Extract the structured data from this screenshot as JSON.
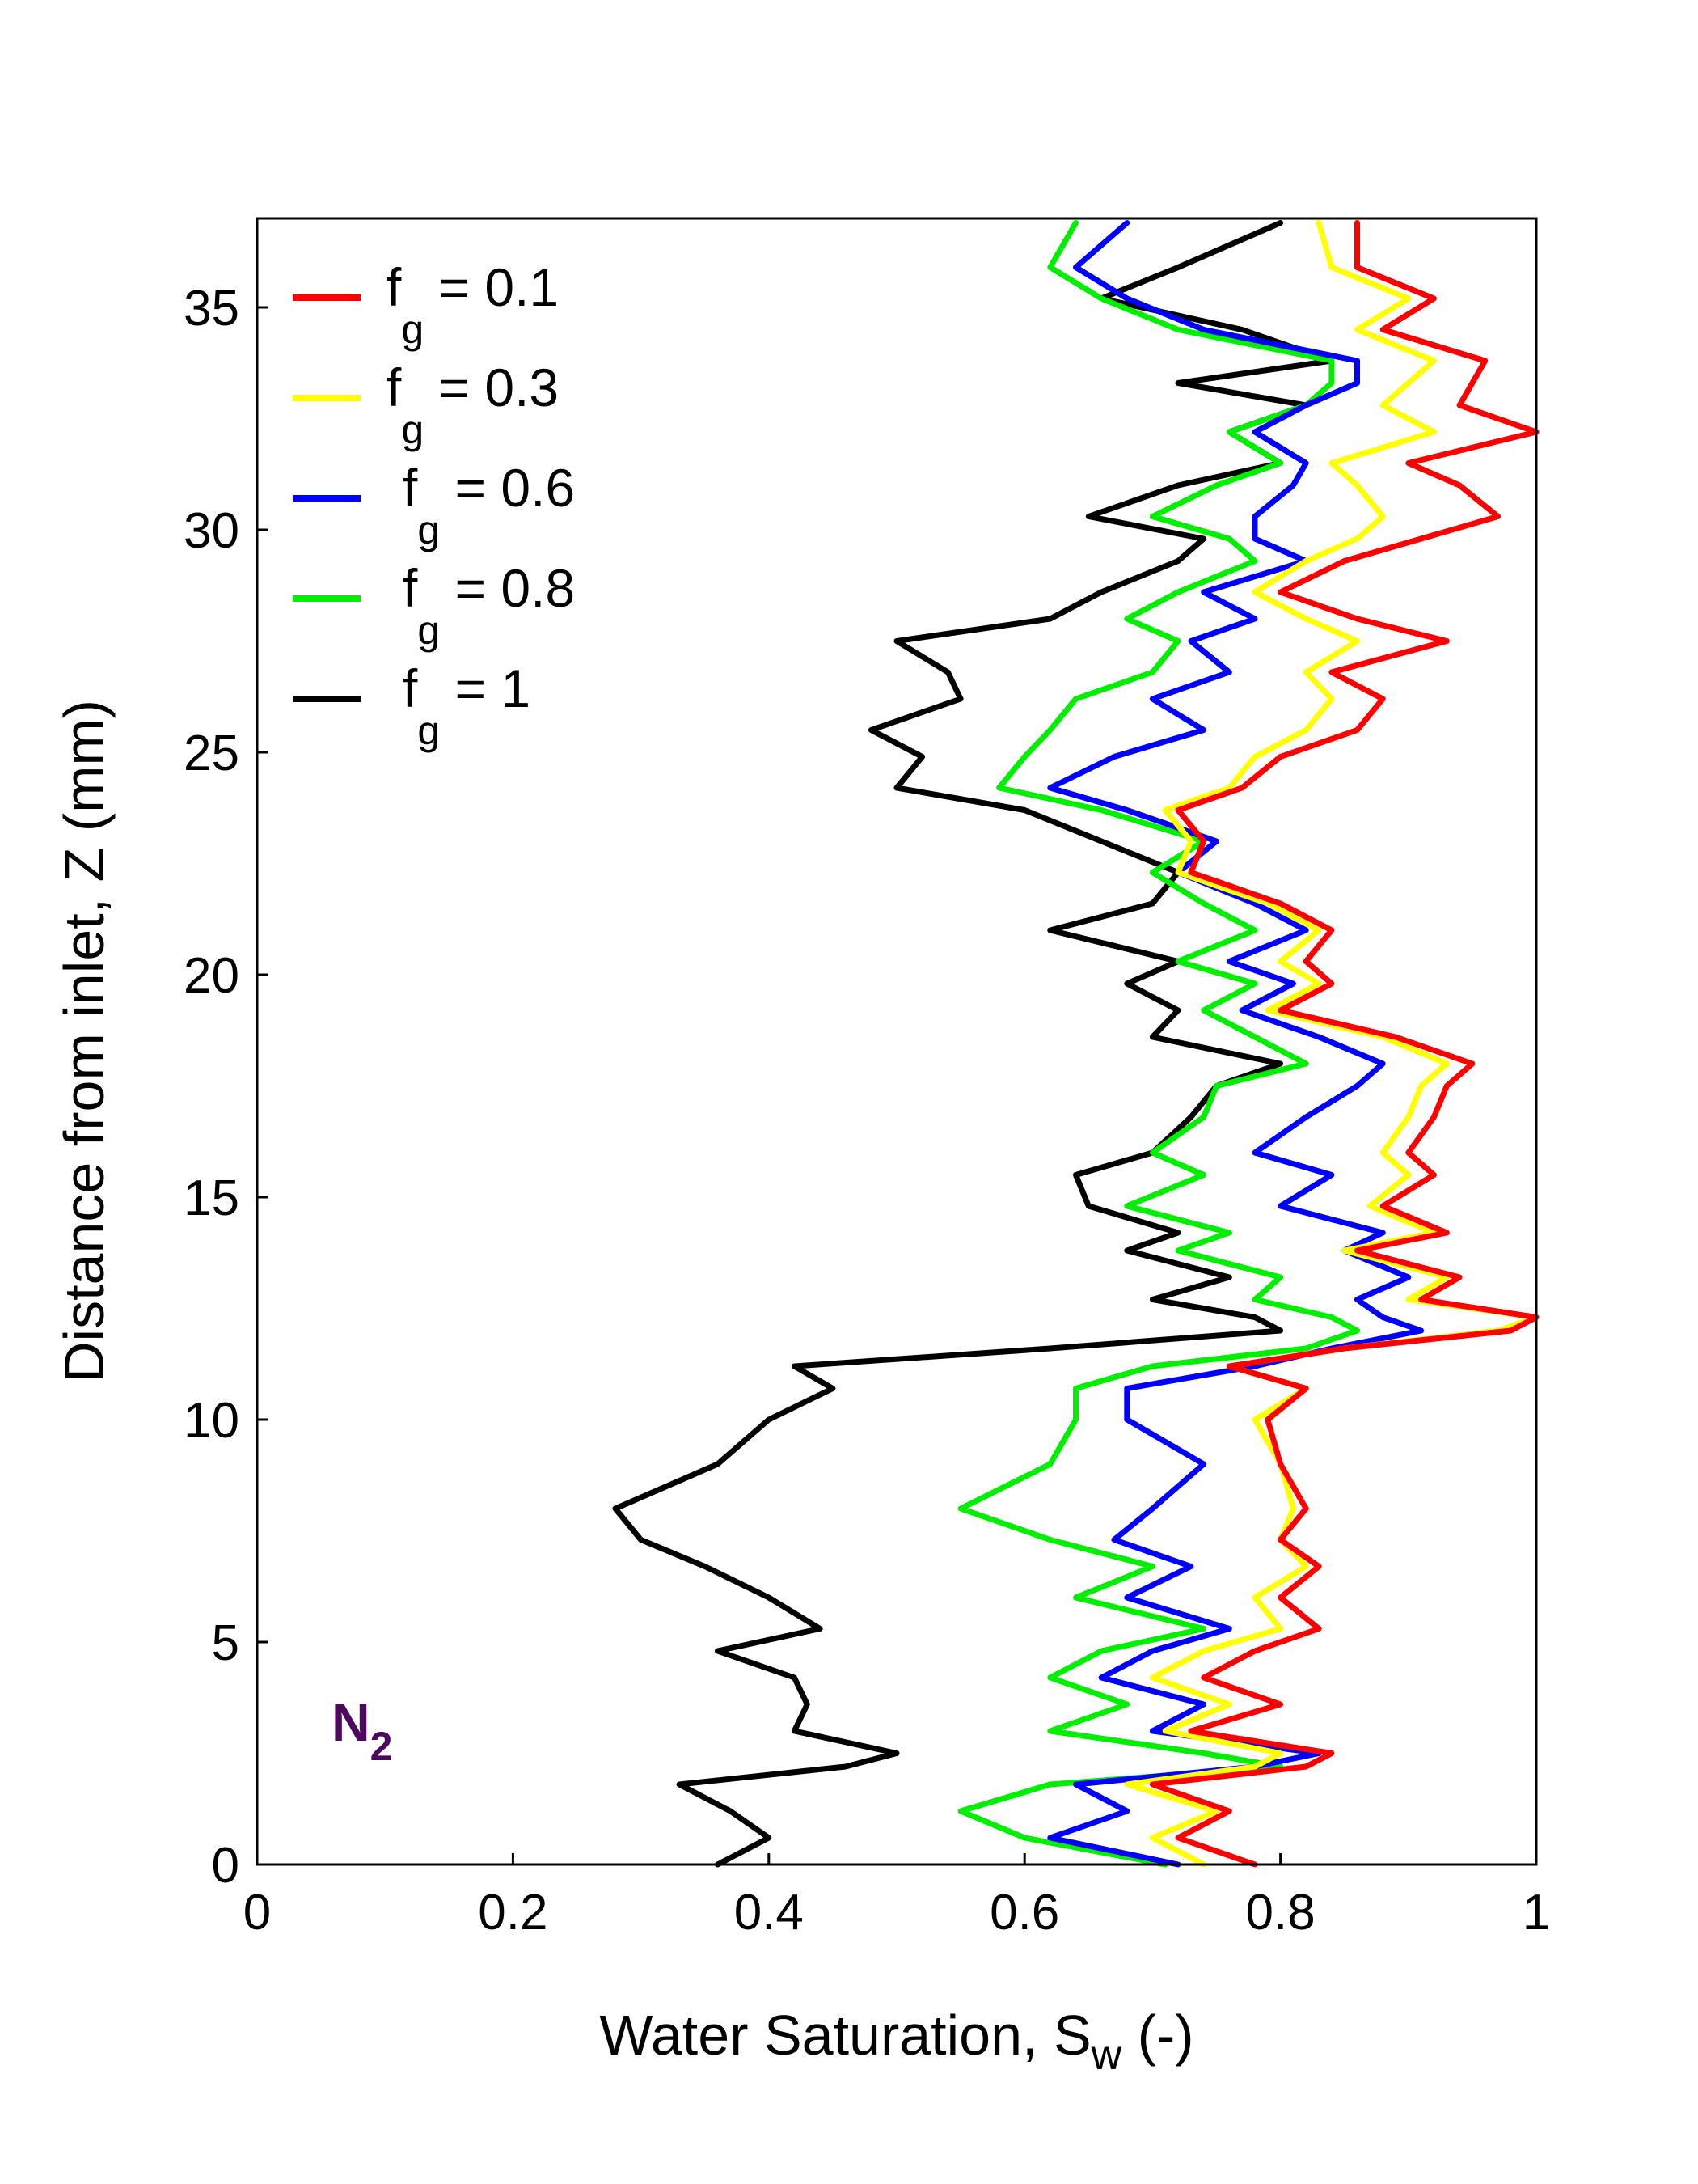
{
  "chart_data": {
    "type": "line",
    "xlabel_main": "Water Saturation, S",
    "xlabel_sub": "w",
    "xlabel_tail": " (-)",
    "ylabel": "Distance from inlet, Z (mm)",
    "xlim": [
      0,
      1
    ],
    "ylim": [
      0,
      37
    ],
    "x_ticks": [
      0,
      0.2,
      0.4,
      0.6,
      0.8,
      1
    ],
    "x_tick_labels": [
      "0",
      "0.2",
      "0.4",
      "0.6",
      "0.8",
      "1"
    ],
    "y_ticks": [
      0,
      5,
      10,
      15,
      20,
      25,
      30,
      35
    ],
    "y_tick_labels": [
      "0",
      "5",
      "10",
      "15",
      "20",
      "25",
      "30",
      "35"
    ],
    "annotation": {
      "main": "N",
      "sub": "2"
    },
    "legend_position": "top-left",
    "series": [
      {
        "name": "f_g = 0.1",
        "label_main": "f",
        "label_sub": "g",
        "label_tail": " = 0.1",
        "color": "#ff0000",
        "x": [
          0.78,
          0.72,
          0.76,
          0.7,
          0.82,
          0.84,
          0.73,
          0.8,
          0.74,
          0.78,
          0.83,
          0.8,
          0.83,
          0.8,
          0.82,
          0.8,
          0.79,
          0.82,
          0.76,
          0.85,
          0.98,
          1.0,
          0.91,
          0.94,
          0.86,
          0.93,
          0.88,
          0.92,
          0.9,
          0.92,
          0.93,
          0.95,
          0.89,
          0.8,
          0.84,
          0.82,
          0.84,
          0.8,
          0.73,
          0.74,
          0.72,
          0.77,
          0.8,
          0.86,
          0.88,
          0.84,
          0.93,
          0.86,
          0.8,
          0.85,
          0.91,
          0.97,
          0.94,
          0.9,
          1.0,
          0.94,
          0.95,
          0.96,
          0.88,
          0.92,
          0.86,
          0.86
        ],
        "y": [
          0.0,
          0.6,
          1.2,
          1.8,
          2.2,
          2.5,
          3.0,
          3.6,
          4.2,
          4.8,
          5.3,
          6.0,
          6.7,
          7.3,
          8.0,
          9.0,
          10.0,
          10.7,
          11.2,
          11.6,
          12.0,
          12.3,
          12.7,
          13.2,
          13.8,
          14.2,
          14.8,
          15.5,
          16.0,
          16.8,
          17.5,
          18.0,
          18.6,
          19.2,
          19.8,
          20.3,
          21.0,
          21.6,
          22.3,
          23.0,
          23.7,
          24.2,
          24.9,
          25.5,
          26.2,
          26.8,
          27.5,
          28.0,
          28.6,
          29.3,
          29.8,
          30.3,
          31.0,
          31.5,
          32.2,
          32.8,
          33.3,
          33.8,
          34.5,
          35.2,
          35.9,
          36.9
        ]
      },
      {
        "name": "f_g = 0.3",
        "label_main": "f",
        "label_sub": "g",
        "label_tail": " = 0.3",
        "color": "#ffff00",
        "x": [
          0.74,
          0.7,
          0.75,
          0.68,
          0.78,
          0.8,
          0.71,
          0.76,
          0.7,
          0.74,
          0.8,
          0.78,
          0.82,
          0.8,
          0.81,
          0.8,
          0.78,
          0.82,
          0.76,
          0.85,
          0.97,
          1.0,
          0.9,
          0.93,
          0.85,
          0.92,
          0.87,
          0.9,
          0.88,
          0.9,
          0.91,
          0.93,
          0.88,
          0.79,
          0.83,
          0.8,
          0.83,
          0.79,
          0.72,
          0.73,
          0.71,
          0.76,
          0.78,
          0.82,
          0.84,
          0.82,
          0.86,
          0.82,
          0.78,
          0.82,
          0.86,
          0.88,
          0.86,
          0.84,
          0.92,
          0.88,
          0.9,
          0.92,
          0.86,
          0.9,
          0.84,
          0.83
        ],
        "y": [
          0.0,
          0.6,
          1.2,
          1.8,
          2.2,
          2.5,
          3.0,
          3.6,
          4.2,
          4.8,
          5.3,
          6.0,
          6.7,
          7.3,
          8.0,
          9.0,
          10.0,
          10.7,
          11.2,
          11.6,
          12.0,
          12.3,
          12.7,
          13.2,
          13.8,
          14.2,
          14.8,
          15.5,
          16.0,
          16.8,
          17.5,
          18.0,
          18.6,
          19.2,
          19.8,
          20.3,
          21.0,
          21.6,
          22.3,
          23.0,
          23.7,
          24.2,
          24.9,
          25.5,
          26.2,
          26.8,
          27.5,
          28.0,
          28.6,
          29.3,
          29.8,
          30.3,
          31.0,
          31.5,
          32.2,
          32.8,
          33.3,
          33.8,
          34.5,
          35.2,
          35.9,
          36.9
        ]
      },
      {
        "name": "f_g = 0.6",
        "label_main": "f",
        "label_sub": "g",
        "label_tail": " = 0.6",
        "color": "#0000ff",
        "x": [
          0.72,
          0.62,
          0.68,
          0.64,
          0.78,
          0.83,
          0.7,
          0.74,
          0.66,
          0.7,
          0.76,
          0.68,
          0.73,
          0.67,
          0.7,
          0.74,
          0.68,
          0.68,
          0.78,
          0.84,
          0.91,
          0.88,
          0.86,
          0.9,
          0.85,
          0.88,
          0.8,
          0.84,
          0.78,
          0.82,
          0.86,
          0.88,
          0.83,
          0.77,
          0.81,
          0.76,
          0.82,
          0.78,
          0.72,
          0.75,
          0.68,
          0.62,
          0.67,
          0.74,
          0.7,
          0.76,
          0.73,
          0.78,
          0.74,
          0.82,
          0.78,
          0.78,
          0.81,
          0.82,
          0.78,
          0.82,
          0.86,
          0.86,
          0.74,
          0.68,
          0.64,
          0.68
        ],
        "y": [
          0.0,
          0.6,
          1.2,
          1.8,
          2.2,
          2.5,
          3.0,
          3.6,
          4.2,
          4.8,
          5.3,
          6.0,
          6.7,
          7.3,
          8.0,
          9.0,
          10.0,
          10.7,
          11.2,
          11.6,
          12.0,
          12.3,
          12.7,
          13.2,
          13.8,
          14.2,
          14.8,
          15.5,
          16.0,
          16.8,
          17.5,
          18.0,
          18.6,
          19.2,
          19.8,
          20.3,
          21.0,
          21.6,
          22.3,
          23.0,
          23.7,
          24.2,
          24.9,
          25.5,
          26.2,
          26.8,
          27.5,
          28.0,
          28.6,
          29.3,
          29.8,
          30.3,
          31.0,
          31.5,
          32.2,
          32.8,
          33.3,
          33.8,
          34.5,
          35.2,
          35.9,
          36.9
        ]
      },
      {
        "name": "f_g = 0.8",
        "label_main": "f",
        "label_sub": "g",
        "label_tail": " = 0.8",
        "color": "#00ee00",
        "x": [
          0.71,
          0.6,
          0.55,
          0.62,
          0.8,
          0.74,
          0.62,
          0.68,
          0.62,
          0.66,
          0.74,
          0.64,
          0.7,
          0.62,
          0.55,
          0.62,
          0.64,
          0.64,
          0.7,
          0.82,
          0.86,
          0.84,
          0.78,
          0.8,
          0.72,
          0.76,
          0.68,
          0.74,
          0.7,
          0.74,
          0.75,
          0.82,
          0.78,
          0.74,
          0.78,
          0.72,
          0.78,
          0.74,
          0.7,
          0.74,
          0.66,
          0.58,
          0.6,
          0.62,
          0.64,
          0.7,
          0.72,
          0.68,
          0.72,
          0.78,
          0.76,
          0.7,
          0.75,
          0.8,
          0.76,
          0.82,
          0.84,
          0.84,
          0.72,
          0.66,
          0.62,
          0.64
        ],
        "y": [
          0.0,
          0.6,
          1.2,
          1.8,
          2.2,
          2.5,
          3.0,
          3.6,
          4.2,
          4.8,
          5.3,
          6.0,
          6.7,
          7.3,
          8.0,
          9.0,
          10.0,
          10.7,
          11.2,
          11.6,
          12.0,
          12.3,
          12.7,
          13.2,
          13.8,
          14.2,
          14.8,
          15.5,
          16.0,
          16.8,
          17.5,
          18.0,
          18.6,
          19.2,
          19.8,
          20.3,
          21.0,
          21.6,
          22.3,
          23.0,
          23.7,
          24.2,
          24.9,
          25.5,
          26.2,
          26.8,
          27.5,
          28.0,
          28.6,
          29.3,
          29.8,
          30.3,
          31.0,
          31.5,
          32.2,
          32.8,
          33.3,
          33.8,
          34.5,
          35.2,
          35.9,
          36.9
        ]
      },
      {
        "name": "f_g = 1",
        "label_main": "f",
        "label_sub": "g",
        "label_tail": " = 1",
        "color": "#000000",
        "x": [
          0.36,
          0.4,
          0.37,
          0.33,
          0.46,
          0.5,
          0.42,
          0.43,
          0.42,
          0.36,
          0.44,
          0.4,
          0.35,
          0.3,
          0.28,
          0.36,
          0.4,
          0.45,
          0.42,
          0.62,
          0.8,
          0.78,
          0.7,
          0.76,
          0.68,
          0.72,
          0.65,
          0.64,
          0.7,
          0.73,
          0.75,
          0.8,
          0.7,
          0.72,
          0.68,
          0.72,
          0.62,
          0.7,
          0.72,
          0.66,
          0.6,
          0.5,
          0.52,
          0.48,
          0.55,
          0.54,
          0.5,
          0.62,
          0.66,
          0.72,
          0.74,
          0.65,
          0.72,
          0.8,
          0.76,
          0.82,
          0.72,
          0.84,
          0.77,
          0.66,
          0.72,
          0.8
        ],
        "y": [
          0.0,
          0.6,
          1.2,
          1.8,
          2.2,
          2.5,
          3.0,
          3.6,
          4.2,
          4.8,
          5.3,
          6.0,
          6.7,
          7.3,
          8.0,
          9.0,
          10.0,
          10.7,
          11.2,
          11.6,
          12.0,
          12.3,
          12.7,
          13.2,
          13.8,
          14.2,
          14.8,
          15.5,
          16.0,
          16.8,
          17.5,
          18.0,
          18.6,
          19.2,
          19.8,
          20.3,
          21.0,
          21.6,
          22.3,
          23.0,
          23.7,
          24.2,
          24.9,
          25.5,
          26.2,
          26.8,
          27.5,
          28.0,
          28.6,
          29.3,
          29.8,
          30.3,
          31.0,
          31.5,
          32.2,
          32.8,
          33.3,
          33.8,
          34.5,
          35.2,
          35.9,
          36.9
        ]
      }
    ]
  }
}
